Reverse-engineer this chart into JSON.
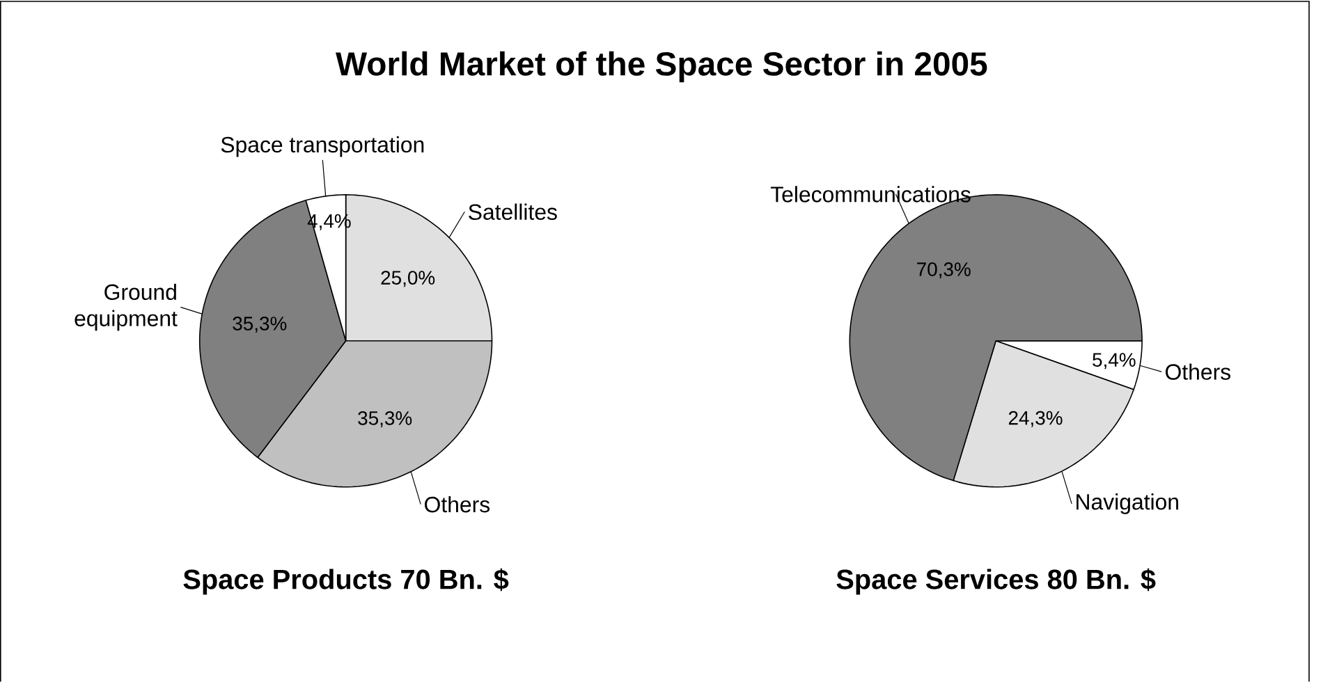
{
  "chart_data": [
    {
      "type": "pie",
      "title": "World Market of the Space Sector in 2005",
      "subtitle": "Space Products 70 Bn. $",
      "categories": [
        "Satellites",
        "Others",
        "Ground equipment",
        "Space transportation"
      ],
      "values": [
        25.0,
        35.3,
        35.3,
        4.4
      ],
      "value_labels": [
        "25,0%",
        "35,3%",
        "35,3%",
        "4,4%"
      ],
      "colors": [
        "#e0e0e0",
        "#c0c0c0",
        "#808080",
        "#ffffff"
      ]
    },
    {
      "type": "pie",
      "subtitle": "Space Services 80 Bn. $",
      "categories": [
        "Others",
        "Navigation",
        "Telecommunications"
      ],
      "values": [
        5.4,
        24.3,
        70.3
      ],
      "value_labels": [
        "5,4%",
        "24,3%",
        "70,3%"
      ],
      "colors": [
        "#ffffff",
        "#e0e0e0",
        "#808080"
      ]
    }
  ]
}
